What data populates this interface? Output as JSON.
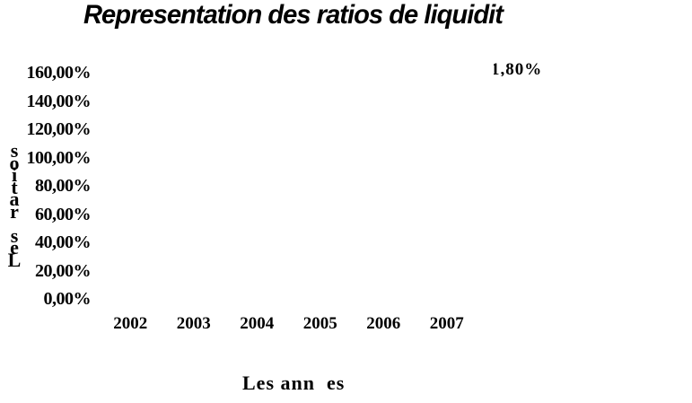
{
  "chart": {
    "title": "Representation des ratios de liquidit",
    "floating_label": "1,80%",
    "y_axis": {
      "label": "Les ratios",
      "ticks": [
        "160,00%",
        "140,00%",
        "120,00%",
        "100,00%",
        "80,00%",
        "60,00%",
        "40,00%",
        "20,00%",
        "0,00%"
      ]
    },
    "x_axis": {
      "label": "Les ann  es",
      "ticks": [
        "2002",
        "2003",
        "2004",
        "2005",
        "2006",
        "2007"
      ]
    }
  },
  "chart_data": {
    "type": "line",
    "title": "Representation des ratios de liquidit",
    "categories": [
      "2002",
      "2003",
      "2004",
      "2005",
      "2006",
      "2007"
    ],
    "series": [],
    "xlabel": "Les ann es",
    "ylabel": "Les ratios",
    "ylim": [
      0,
      160
    ],
    "y_tick_labels": [
      "160,00%",
      "140,00%",
      "120,00%",
      "100,00%",
      "80,00%",
      "60,00%",
      "40,00%",
      "20,00%",
      "0,00%"
    ],
    "y_tick_step_percent": 20,
    "grid": false,
    "legend_position": "none",
    "annotations": [
      {
        "text": "1,80%",
        "position": "top-right",
        "clipped_bottom": true
      }
    ]
  }
}
